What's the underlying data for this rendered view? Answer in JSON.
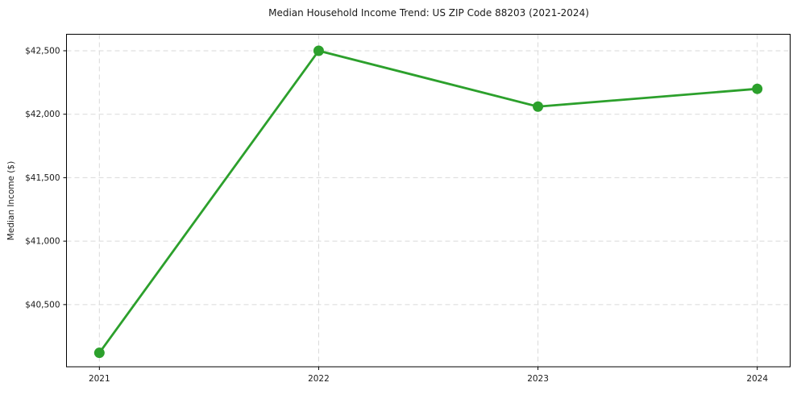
{
  "figure": {
    "background": "#ffffff",
    "text_color": "#1a1a1a"
  },
  "chart_data": {
    "type": "line",
    "title": "Median Household Income Trend: US ZIP Code 88203 (2021-2024)",
    "xlabel": "",
    "ylabel": "Median Income ($)",
    "x": [
      2021,
      2022,
      2023,
      2024
    ],
    "x_tick_labels": [
      "2021",
      "2022",
      "2023",
      "2024"
    ],
    "series": [
      {
        "name": "Median Household Income",
        "values": [
          40120,
          42500,
          42060,
          42200
        ],
        "color": "#2ca02c",
        "marker": "circle"
      }
    ],
    "y_ticks": [
      40500,
      41000,
      41500,
      42000,
      42500
    ],
    "y_tick_labels": [
      "$40,500",
      "$41,000",
      "$41,500",
      "$42,000",
      "$42,500"
    ],
    "ylim": [
      40010,
      42630
    ],
    "xlim": [
      2020.85,
      2024.15
    ],
    "grid": true,
    "grid_style": "dashed",
    "grid_color": "#d9d9d9",
    "axis_color": "#000000",
    "tick_label_color": "#1a1a1a",
    "legend_position": "none"
  }
}
